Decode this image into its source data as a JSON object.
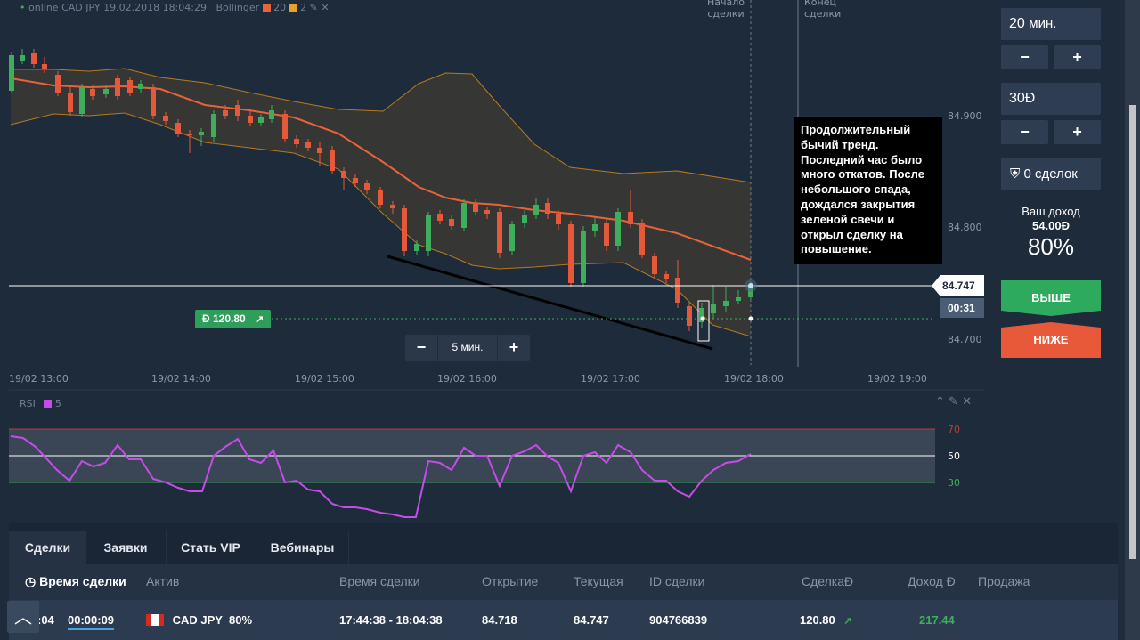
{
  "header": {
    "status_dot_label": "online",
    "symbol_time": "CAD JPY 19.02.2018 18:04:29",
    "indicator_name": "Bollinger",
    "indicator_param1": "20",
    "indicator_param2": "2"
  },
  "markers": {
    "start_label": "Начало\nсделки",
    "end_label": "Конец\nсделки"
  },
  "price_axis": [
    "84.900",
    "84.800",
    "84.700"
  ],
  "time_axis": [
    "19/02 13:00",
    "19/02 14:00",
    "19/02 15:00",
    "19/02 16:00",
    "19/02 17:00",
    "19/02 18:00",
    "19/02 19:00"
  ],
  "current_price": "84.747",
  "countdown": "00:31",
  "trade_badge": "Đ 120.80",
  "timeframe": {
    "minus": "−",
    "label": "5 мин.",
    "plus": "+"
  },
  "tooltip_text": "Продолжительный бычий тренд. Последний час было много откатов. После небольшого спада, дождался закрытия зеленой свечи и открыл сделку на повышение.",
  "rsi": {
    "name": "RSI",
    "period": "5",
    "levels": [
      "70",
      "50",
      "30"
    ]
  },
  "right_panel": {
    "duration_value": "20",
    "duration_unit": "мин.",
    "amount_value": "30",
    "amount_currency": "Đ",
    "minus": "−",
    "plus": "+",
    "deals_label": "0 сделок",
    "income_label": "Ваш доход",
    "income_value": "54.00Đ",
    "income_percent": "80%",
    "up_label": "ВЫШЕ",
    "down_label": "НИЖЕ"
  },
  "tabs": [
    "Сделки",
    "Заявки",
    "Стать VIP",
    "Вебинары"
  ],
  "table": {
    "headers": [
      "Время сделки",
      "Актив",
      "Время сделки",
      "Открытие",
      "Текущая",
      "ID сделки",
      "СделкаĐ",
      "Доход Đ",
      "Продажа"
    ],
    "row": {
      "time_left_a": ":04",
      "time_left_b": "00:00:09",
      "asset": "CAD JPY",
      "asset_pct": "80%",
      "period": "17:44:38 - 18:04:38",
      "open": "84.718",
      "current": "84.747",
      "deal_id": "904766839",
      "amount": "120.80",
      "profit": "217.44"
    }
  },
  "colors": {
    "bg": "#1e2b3b",
    "band_fill": "#3b3a34",
    "band_line": "#b67a1c",
    "mid_line": "#e8623a",
    "bull": "#3fae5c",
    "bear": "#e6583a",
    "rsi_line": "#c54ce6",
    "up_btn": "#2eaa5e",
    "down_btn": "#e8593a"
  },
  "chart_data": {
    "type": "candlestick",
    "symbol": "CAD JPY",
    "x": [
      "19/02 13:00",
      "19/02 14:00",
      "19/02 15:00",
      "19/02 16:00",
      "19/02 17:00",
      "19/02 18:00",
      "19/02 19:00"
    ],
    "price_ticks": [
      84.9,
      84.8,
      84.7
    ],
    "current": 84.747,
    "rsi_levels": [
      70,
      50,
      30
    ]
  }
}
